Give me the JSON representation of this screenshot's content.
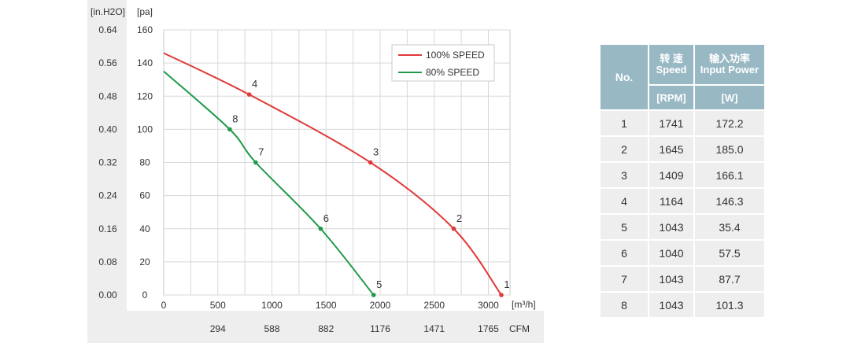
{
  "chart_data": {
    "type": "line",
    "axis_units": {
      "pressure_inH2O": "[in.H2O]",
      "pressure_pa": "[pa]",
      "flow_m3h": "[m³/h]",
      "flow_cfm": "CFM"
    },
    "y_ticks_pa": [
      "160",
      "140",
      "120",
      "100",
      "80",
      "60",
      "40",
      "20",
      "0"
    ],
    "y_ticks_inH2O": [
      "0.64",
      "0.56",
      "0.48",
      "0.40",
      "0.32",
      "0.24",
      "0.16",
      "0.08",
      "0.00"
    ],
    "x_ticks_m3h": [
      "0",
      "500",
      "1000",
      "1500",
      "2000",
      "2500",
      "3000"
    ],
    "x_ticks_cfm": [
      "294",
      "588",
      "882",
      "1176",
      "1471",
      "1765"
    ],
    "xlim": [
      0,
      3200
    ],
    "ylim": [
      0,
      160
    ],
    "grid": true,
    "legend_position": "top-right",
    "series": [
      {
        "name": "100% SPEED",
        "color": "#e03a3a",
        "x": [
          0,
          790,
          1910,
          2680,
          3120
        ],
        "y": [
          146,
          121,
          80,
          40,
          0
        ],
        "points": [
          {
            "label": "4",
            "x": 790,
            "y": 121
          },
          {
            "label": "3",
            "x": 1910,
            "y": 80
          },
          {
            "label": "2",
            "x": 2680,
            "y": 40
          },
          {
            "label": "1",
            "x": 3120,
            "y": 0
          }
        ]
      },
      {
        "name": "80%  SPEED",
        "color": "#1f9a4a",
        "x": [
          0,
          610,
          850,
          1450,
          1940
        ],
        "y": [
          135,
          100,
          80,
          40,
          0
        ],
        "points": [
          {
            "label": "8",
            "x": 610,
            "y": 100
          },
          {
            "label": "7",
            "x": 850,
            "y": 80
          },
          {
            "label": "6",
            "x": 1450,
            "y": 40
          },
          {
            "label": "5",
            "x": 1940,
            "y": 0
          }
        ]
      }
    ]
  },
  "table": {
    "col_no": "No.",
    "col_speed_zh": "转 速",
    "col_speed_en": "Speed",
    "col_power_zh": "输入功率",
    "col_power_en": "Input Power",
    "unit_speed": "[RPM]",
    "unit_power": "[W]",
    "rows": [
      {
        "no": "1",
        "speed": "1741",
        "power": "172.2"
      },
      {
        "no": "2",
        "speed": "1645",
        "power": "185.0"
      },
      {
        "no": "3",
        "speed": "1409",
        "power": "166.1"
      },
      {
        "no": "4",
        "speed": "1164",
        "power": "146.3"
      },
      {
        "no": "5",
        "speed": "1043",
        "power": "35.4"
      },
      {
        "no": "6",
        "speed": "1040",
        "power": "57.5"
      },
      {
        "no": "7",
        "speed": "1043",
        "power": "87.7"
      },
      {
        "no": "8",
        "speed": "1043",
        "power": "101.3"
      }
    ]
  }
}
